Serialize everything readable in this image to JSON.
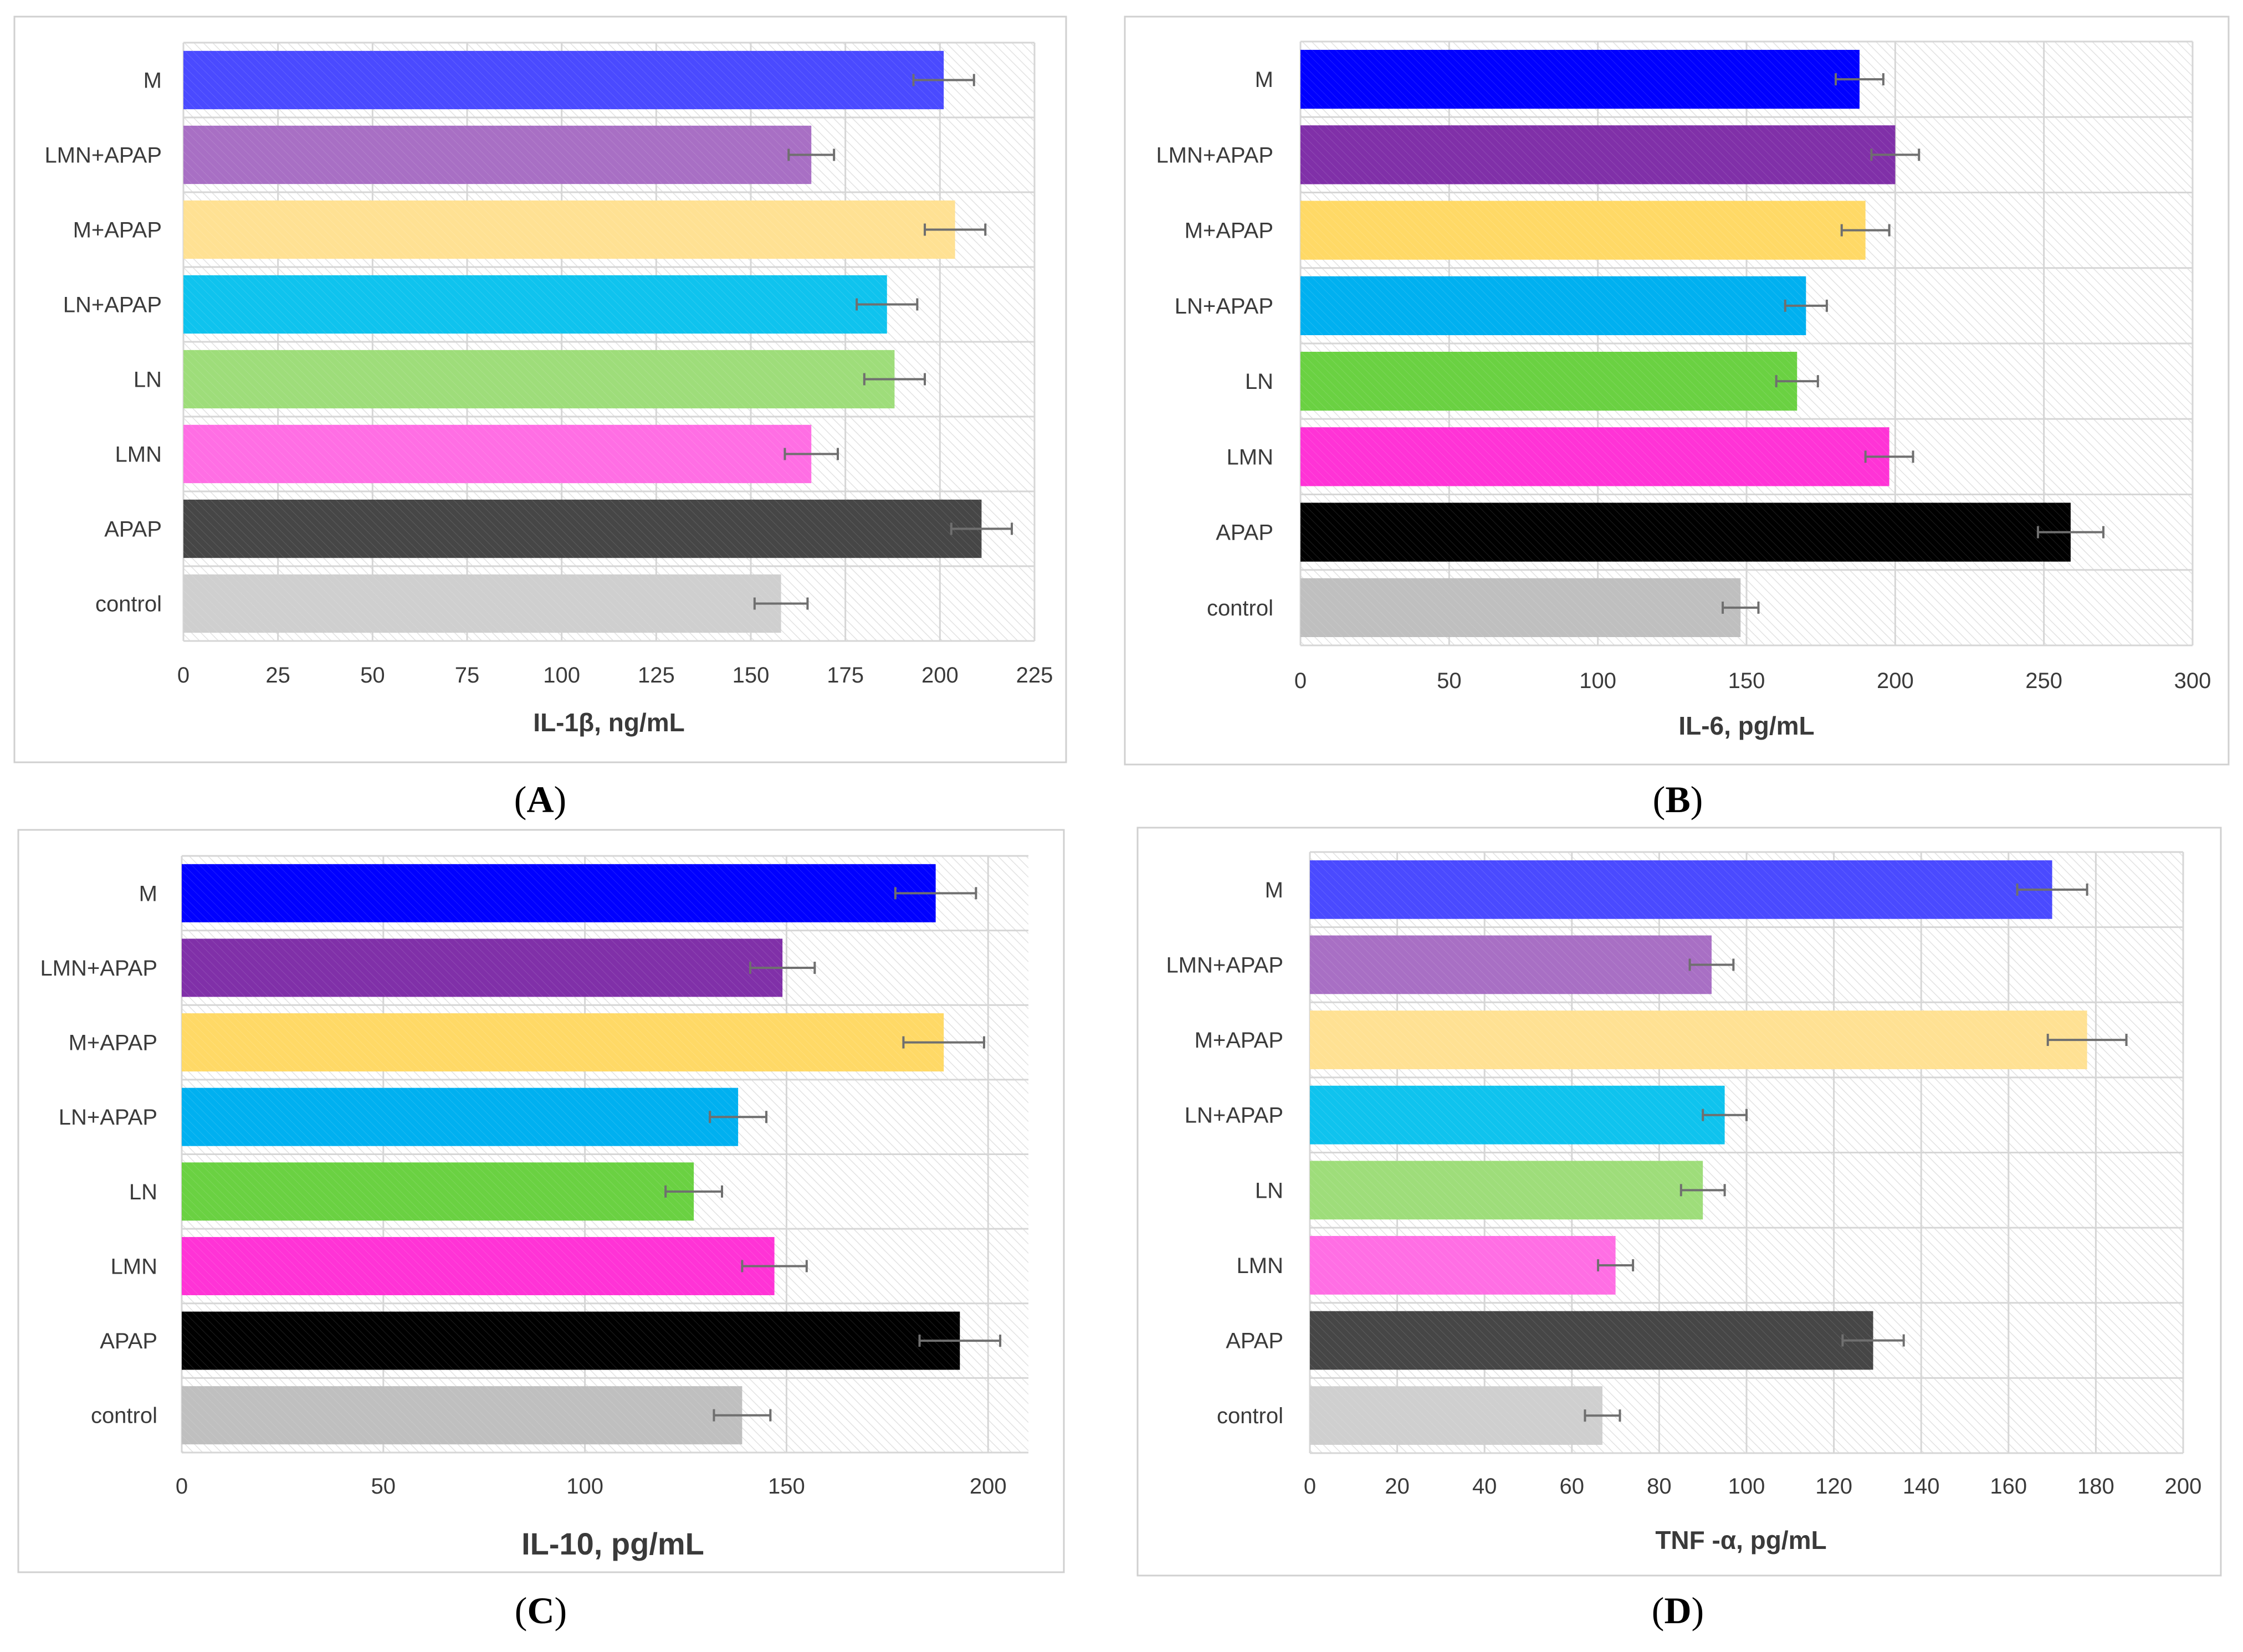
{
  "figure": {
    "panel_labels": [
      "A",
      "B",
      "C",
      "D"
    ]
  },
  "chart_data": [
    {
      "panel": "A",
      "type": "bar",
      "orientation": "horizontal",
      "categories": [
        "M",
        "LMN+APAP",
        "M+APAP",
        "LN+APAP",
        "LN",
        "LMN",
        "APAP",
        "control"
      ],
      "values": [
        201,
        166,
        204,
        186,
        188,
        166,
        211,
        158
      ],
      "errors": [
        8,
        6,
        8,
        8,
        8,
        7,
        8,
        7
      ],
      "colors": [
        "#4a4aff",
        "#a86fc4",
        "#ffe193",
        "#0fc3ee",
        "#9edd7a",
        "#ff6ee4",
        "#464646",
        "#cfcfcf"
      ],
      "xlabel": "IL-1β, ng/mL",
      "xlim": [
        0,
        225
      ],
      "ticks": [
        0,
        25,
        50,
        75,
        100,
        125,
        150,
        175,
        200,
        225
      ],
      "grid": true
    },
    {
      "panel": "B",
      "type": "bar",
      "orientation": "horizontal",
      "categories": [
        "M",
        "LMN+APAP",
        "M+APAP",
        "LN+APAP",
        "LN",
        "LMN",
        "APAP",
        "control"
      ],
      "values": [
        188,
        200,
        190,
        170,
        167,
        198,
        259,
        148
      ],
      "errors": [
        8,
        8,
        8,
        7,
        7,
        8,
        11,
        6
      ],
      "colors": [
        "#0000ff",
        "#8030a8",
        "#ffd966",
        "#00b0f0",
        "#6ad142",
        "#ff33d6",
        "#000000",
        "#bfbfbf"
      ],
      "xlabel": "IL-6, pg/mL",
      "xlim": [
        0,
        300
      ],
      "ticks": [
        0,
        50,
        100,
        150,
        200,
        250,
        300
      ],
      "grid": true
    },
    {
      "panel": "C",
      "type": "bar",
      "orientation": "horizontal",
      "categories": [
        "M",
        "LMN+APAP",
        "M+APAP",
        "LN+APAP",
        "LN",
        "LMN",
        "APAP",
        "control"
      ],
      "values": [
        187,
        149,
        189,
        138,
        127,
        147,
        193,
        139
      ],
      "errors": [
        10,
        8,
        10,
        7,
        7,
        8,
        10,
        7
      ],
      "colors": [
        "#0000ff",
        "#8030a8",
        "#ffd966",
        "#00b0f0",
        "#6ad142",
        "#ff33d6",
        "#000000",
        "#bfbfbf"
      ],
      "xlabel": "IL-10, pg/mL",
      "xlim": [
        0,
        210
      ],
      "ticks": [
        0,
        50,
        100,
        150,
        200
      ],
      "grid": true
    },
    {
      "panel": "D",
      "type": "bar",
      "orientation": "horizontal",
      "categories": [
        "M",
        "LMN+APAP",
        "M+APAP",
        "LN+APAP",
        "LN",
        "LMN",
        "APAP",
        "control"
      ],
      "values": [
        170,
        92,
        178,
        95,
        90,
        70,
        129,
        67
      ],
      "errors": [
        8,
        5,
        9,
        5,
        5,
        4,
        7,
        4
      ],
      "colors": [
        "#4a4aff",
        "#a86fc4",
        "#ffe193",
        "#0fc3ee",
        "#9edd7a",
        "#ff6ee4",
        "#464646",
        "#cfcfcf"
      ],
      "xlabel": "TNF -α, pg/mL",
      "xlim": [
        0,
        200
      ],
      "ticks": [
        0,
        20,
        40,
        60,
        80,
        100,
        120,
        140,
        160,
        180,
        200
      ],
      "grid": true
    }
  ]
}
